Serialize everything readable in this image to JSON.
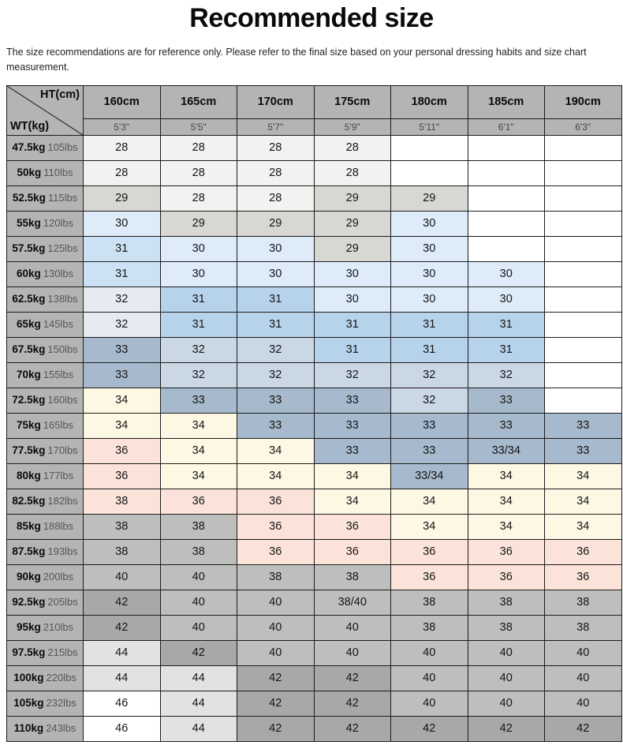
{
  "page": {
    "title": "Recommended size",
    "subtitle": "The size recommendations are for reference only. Please refer to the final size based on your personal dressing habits and size chart measurement."
  },
  "table": {
    "corner": {
      "top_label": "HT(cm)",
      "bottom_label": "WT(kg)"
    },
    "columns": [
      {
        "cm": "160cm",
        "ft": "5'3\""
      },
      {
        "cm": "165cm",
        "ft": "5'5\""
      },
      {
        "cm": "170cm",
        "ft": "5'7\""
      },
      {
        "cm": "175cm",
        "ft": "5'9\""
      },
      {
        "cm": "180cm",
        "ft": "5'11\""
      },
      {
        "cm": "185cm",
        "ft": "6'1\""
      },
      {
        "cm": "190cm",
        "ft": "6'3\""
      }
    ],
    "palette": {
      "header_bg": "#b4b4b4",
      "border": "#1c1c1c",
      "w": "#ffffff",
      "ow": "#f2f2f0",
      "lg": "#d8d7d3",
      "pb": "#ddecf8",
      "sb": "#cce2f4",
      "ps": "#e6ebf2",
      "bl": "#b7d3ec",
      "sl": "#cad7e4",
      "st": "#a7b9cc",
      "cr": "#fdf8e3",
      "pk": "#fbe3da",
      "gr": "#bebebc",
      "dg": "#a8a8a8",
      "sv": "#e2e2e0"
    },
    "rows": [
      {
        "kg": "47.5kg",
        "lbs": "105lbs",
        "cells": [
          {
            "v": "28",
            "bg": "ow"
          },
          {
            "v": "28",
            "bg": "ow"
          },
          {
            "v": "28",
            "bg": "ow"
          },
          {
            "v": "28",
            "bg": "ow"
          },
          {
            "v": "",
            "bg": "w"
          },
          {
            "v": "",
            "bg": "w"
          },
          {
            "v": "",
            "bg": "w"
          }
        ]
      },
      {
        "kg": "50kg",
        "lbs": "110lbs",
        "cells": [
          {
            "v": "28",
            "bg": "ow"
          },
          {
            "v": "28",
            "bg": "ow"
          },
          {
            "v": "28",
            "bg": "ow"
          },
          {
            "v": "28",
            "bg": "ow"
          },
          {
            "v": "",
            "bg": "w"
          },
          {
            "v": "",
            "bg": "w"
          },
          {
            "v": "",
            "bg": "w"
          }
        ]
      },
      {
        "kg": "52.5kg",
        "lbs": "115lbs",
        "cells": [
          {
            "v": "29",
            "bg": "lg"
          },
          {
            "v": "28",
            "bg": "ow"
          },
          {
            "v": "28",
            "bg": "ow"
          },
          {
            "v": "29",
            "bg": "lg"
          },
          {
            "v": "29",
            "bg": "lg"
          },
          {
            "v": "",
            "bg": "w"
          },
          {
            "v": "",
            "bg": "w"
          }
        ]
      },
      {
        "kg": "55kg",
        "lbs": "120lbs",
        "cells": [
          {
            "v": "30",
            "bg": "pb"
          },
          {
            "v": "29",
            "bg": "lg"
          },
          {
            "v": "29",
            "bg": "lg"
          },
          {
            "v": "29",
            "bg": "lg"
          },
          {
            "v": "30",
            "bg": "pb"
          },
          {
            "v": "",
            "bg": "w"
          },
          {
            "v": "",
            "bg": "w"
          }
        ]
      },
      {
        "kg": "57.5kg",
        "lbs": "125lbs",
        "cells": [
          {
            "v": "31",
            "bg": "sb"
          },
          {
            "v": "30",
            "bg": "pb"
          },
          {
            "v": "30",
            "bg": "pb"
          },
          {
            "v": "29",
            "bg": "lg"
          },
          {
            "v": "30",
            "bg": "pb"
          },
          {
            "v": "",
            "bg": "w"
          },
          {
            "v": "",
            "bg": "w"
          }
        ]
      },
      {
        "kg": "60kg",
        "lbs": "130lbs",
        "cells": [
          {
            "v": "31",
            "bg": "sb"
          },
          {
            "v": "30",
            "bg": "pb"
          },
          {
            "v": "30",
            "bg": "pb"
          },
          {
            "v": "30",
            "bg": "pb"
          },
          {
            "v": "30",
            "bg": "pb"
          },
          {
            "v": "30",
            "bg": "pb"
          },
          {
            "v": "",
            "bg": "w"
          }
        ]
      },
      {
        "kg": "62.5kg",
        "lbs": "138lbs",
        "cells": [
          {
            "v": "32",
            "bg": "ps"
          },
          {
            "v": "31",
            "bg": "bl"
          },
          {
            "v": "31",
            "bg": "bl"
          },
          {
            "v": "30",
            "bg": "pb"
          },
          {
            "v": "30",
            "bg": "pb"
          },
          {
            "v": "30",
            "bg": "pb"
          },
          {
            "v": "",
            "bg": "w"
          }
        ]
      },
      {
        "kg": "65kg",
        "lbs": "145lbs",
        "cells": [
          {
            "v": "32",
            "bg": "ps"
          },
          {
            "v": "31",
            "bg": "bl"
          },
          {
            "v": "31",
            "bg": "bl"
          },
          {
            "v": "31",
            "bg": "bl"
          },
          {
            "v": "31",
            "bg": "bl"
          },
          {
            "v": "31",
            "bg": "bl"
          },
          {
            "v": "",
            "bg": "w"
          }
        ]
      },
      {
        "kg": "67.5kg",
        "lbs": "150lbs",
        "cells": [
          {
            "v": "33",
            "bg": "st"
          },
          {
            "v": "32",
            "bg": "sl"
          },
          {
            "v": "32",
            "bg": "sl"
          },
          {
            "v": "31",
            "bg": "bl"
          },
          {
            "v": "31",
            "bg": "bl"
          },
          {
            "v": "31",
            "bg": "bl"
          },
          {
            "v": "",
            "bg": "w"
          }
        ]
      },
      {
        "kg": "70kg",
        "lbs": "155lbs",
        "cells": [
          {
            "v": "33",
            "bg": "st"
          },
          {
            "v": "32",
            "bg": "sl"
          },
          {
            "v": "32",
            "bg": "sl"
          },
          {
            "v": "32",
            "bg": "sl"
          },
          {
            "v": "32",
            "bg": "sl"
          },
          {
            "v": "32",
            "bg": "sl"
          },
          {
            "v": "",
            "bg": "w"
          }
        ]
      },
      {
        "kg": "72.5kg",
        "lbs": "160lbs",
        "cells": [
          {
            "v": "34",
            "bg": "cr"
          },
          {
            "v": "33",
            "bg": "st"
          },
          {
            "v": "33",
            "bg": "st"
          },
          {
            "v": "33",
            "bg": "st"
          },
          {
            "v": "32",
            "bg": "sl"
          },
          {
            "v": "33",
            "bg": "st"
          },
          {
            "v": "",
            "bg": "w"
          }
        ]
      },
      {
        "kg": "75kg",
        "lbs": "165lbs",
        "cells": [
          {
            "v": "34",
            "bg": "cr"
          },
          {
            "v": "34",
            "bg": "cr"
          },
          {
            "v": "33",
            "bg": "st"
          },
          {
            "v": "33",
            "bg": "st"
          },
          {
            "v": "33",
            "bg": "st"
          },
          {
            "v": "33",
            "bg": "st"
          },
          {
            "v": "33",
            "bg": "st"
          }
        ]
      },
      {
        "kg": "77.5kg",
        "lbs": "170lbs",
        "cells": [
          {
            "v": "36",
            "bg": "pk"
          },
          {
            "v": "34",
            "bg": "cr"
          },
          {
            "v": "34",
            "bg": "cr"
          },
          {
            "v": "33",
            "bg": "st"
          },
          {
            "v": "33",
            "bg": "st"
          },
          {
            "v": "33/34",
            "bg": "st"
          },
          {
            "v": "33",
            "bg": "st"
          }
        ]
      },
      {
        "kg": "80kg",
        "lbs": "177lbs",
        "cells": [
          {
            "v": "36",
            "bg": "pk"
          },
          {
            "v": "34",
            "bg": "cr"
          },
          {
            "v": "34",
            "bg": "cr"
          },
          {
            "v": "34",
            "bg": "cr"
          },
          {
            "v": "33/34",
            "bg": "st"
          },
          {
            "v": "34",
            "bg": "cr"
          },
          {
            "v": "34",
            "bg": "cr"
          }
        ]
      },
      {
        "kg": "82.5kg",
        "lbs": "182lbs",
        "cells": [
          {
            "v": "38",
            "bg": "pk"
          },
          {
            "v": "36",
            "bg": "pk"
          },
          {
            "v": "36",
            "bg": "pk"
          },
          {
            "v": "34",
            "bg": "cr"
          },
          {
            "v": "34",
            "bg": "cr"
          },
          {
            "v": "34",
            "bg": "cr"
          },
          {
            "v": "34",
            "bg": "cr"
          }
        ]
      },
      {
        "kg": "85kg",
        "lbs": "188lbs",
        "cells": [
          {
            "v": "38",
            "bg": "gr"
          },
          {
            "v": "38",
            "bg": "gr"
          },
          {
            "v": "36",
            "bg": "pk"
          },
          {
            "v": "36",
            "bg": "pk"
          },
          {
            "v": "34",
            "bg": "cr"
          },
          {
            "v": "34",
            "bg": "cr"
          },
          {
            "v": "34",
            "bg": "cr"
          }
        ]
      },
      {
        "kg": "87.5kg",
        "lbs": "193lbs",
        "cells": [
          {
            "v": "38",
            "bg": "gr"
          },
          {
            "v": "38",
            "bg": "gr"
          },
          {
            "v": "36",
            "bg": "pk"
          },
          {
            "v": "36",
            "bg": "pk"
          },
          {
            "v": "36",
            "bg": "pk"
          },
          {
            "v": "36",
            "bg": "pk"
          },
          {
            "v": "36",
            "bg": "pk"
          }
        ]
      },
      {
        "kg": "90kg",
        "lbs": "200lbs",
        "cells": [
          {
            "v": "40",
            "bg": "gr"
          },
          {
            "v": "40",
            "bg": "gr"
          },
          {
            "v": "38",
            "bg": "gr"
          },
          {
            "v": "38",
            "bg": "gr"
          },
          {
            "v": "36",
            "bg": "pk"
          },
          {
            "v": "36",
            "bg": "pk"
          },
          {
            "v": "36",
            "bg": "pk"
          }
        ]
      },
      {
        "kg": "92.5kg",
        "lbs": "205lbs",
        "cells": [
          {
            "v": "42",
            "bg": "dg"
          },
          {
            "v": "40",
            "bg": "gr"
          },
          {
            "v": "40",
            "bg": "gr"
          },
          {
            "v": "38/40",
            "bg": "gr"
          },
          {
            "v": "38",
            "bg": "gr"
          },
          {
            "v": "38",
            "bg": "gr"
          },
          {
            "v": "38",
            "bg": "gr"
          }
        ]
      },
      {
        "kg": "95kg",
        "lbs": "210lbs",
        "cells": [
          {
            "v": "42",
            "bg": "dg"
          },
          {
            "v": "40",
            "bg": "gr"
          },
          {
            "v": "40",
            "bg": "gr"
          },
          {
            "v": "40",
            "bg": "gr"
          },
          {
            "v": "38",
            "bg": "gr"
          },
          {
            "v": "38",
            "bg": "gr"
          },
          {
            "v": "38",
            "bg": "gr"
          }
        ]
      },
      {
        "kg": "97.5kg",
        "lbs": "215lbs",
        "cells": [
          {
            "v": "44",
            "bg": "sv"
          },
          {
            "v": "42",
            "bg": "dg"
          },
          {
            "v": "40",
            "bg": "gr"
          },
          {
            "v": "40",
            "bg": "gr"
          },
          {
            "v": "40",
            "bg": "gr"
          },
          {
            "v": "40",
            "bg": "gr"
          },
          {
            "v": "40",
            "bg": "gr"
          }
        ]
      },
      {
        "kg": "100kg",
        "lbs": "220lbs",
        "cells": [
          {
            "v": "44",
            "bg": "sv"
          },
          {
            "v": "44",
            "bg": "sv"
          },
          {
            "v": "42",
            "bg": "dg"
          },
          {
            "v": "42",
            "bg": "dg"
          },
          {
            "v": "40",
            "bg": "gr"
          },
          {
            "v": "40",
            "bg": "gr"
          },
          {
            "v": "40",
            "bg": "gr"
          }
        ]
      },
      {
        "kg": "105kg",
        "lbs": "232lbs",
        "cells": [
          {
            "v": "46",
            "bg": "w"
          },
          {
            "v": "44",
            "bg": "sv"
          },
          {
            "v": "42",
            "bg": "dg"
          },
          {
            "v": "42",
            "bg": "dg"
          },
          {
            "v": "40",
            "bg": "gr"
          },
          {
            "v": "40",
            "bg": "gr"
          },
          {
            "v": "40",
            "bg": "gr"
          }
        ]
      },
      {
        "kg": "110kg",
        "lbs": "243lbs",
        "cells": [
          {
            "v": "46",
            "bg": "w"
          },
          {
            "v": "44",
            "bg": "sv"
          },
          {
            "v": "42",
            "bg": "dg"
          },
          {
            "v": "42",
            "bg": "dg"
          },
          {
            "v": "42",
            "bg": "dg"
          },
          {
            "v": "42",
            "bg": "dg"
          },
          {
            "v": "42",
            "bg": "dg"
          }
        ]
      }
    ]
  }
}
